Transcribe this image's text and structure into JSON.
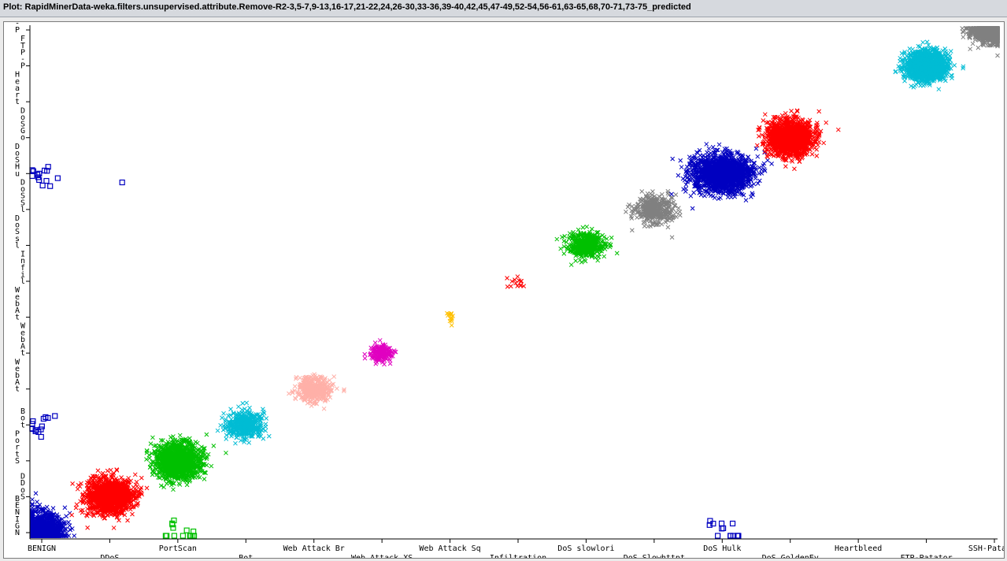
{
  "window": {
    "title": "Plot: RapidMinerData-weka.filters.unsupervised.attribute.Remove-R2-3,5-7,9-13,16-17,21-22,24,26-30,33-36,39-40,42,45,47-49,52-54,56-61,63-65,68,70-71,73-75_predicted"
  },
  "chart_data": {
    "type": "scatter",
    "title": "Plot: RapidMinerData-weka.filters.unsupervised.attribute.Remove-R2-3,5-7,9-13,16-17,21-22,24,26-30,33-36,39-40,42,45,47-49,52-54,56-61,63-65,68,70-71,73-75_predicted",
    "x_categories": [
      "BENIGN",
      "DDoS",
      "PortScan",
      "Bot",
      "Web Attack Br",
      "Web Attack XS",
      "Web Attack Sq",
      "Infiltration",
      "DoS slowlori",
      "DoS Slowhttpt",
      "DoS Hulk",
      "DoS GoldenEy",
      "Heartbleed",
      "FTP-Patator",
      "SSH-Patator"
    ],
    "y_categories": [
      "BENIGN",
      "DDoS",
      "PortScan",
      "Bot",
      "Web Attack Br",
      "Web Attack XS",
      "Web Attack Sq",
      "Infiltration",
      "DoS slowlori",
      "DoS Slowhttpt",
      "DoS Hulk",
      "DoS GoldenEy",
      "Heartbleed",
      "FTP-Patator",
      "SSH-Patator"
    ],
    "y_tick_labels": [
      {
        "lines": [
          "B",
          "E",
          "N",
          "I",
          "G",
          "N"
        ]
      },
      {
        "lines": [
          "D",
          "D",
          "o",
          "S"
        ]
      },
      {
        "lines": [
          "P",
          "o",
          "r",
          "t",
          "S"
        ]
      },
      {
        "lines": [
          "B",
          "o",
          "t"
        ]
      },
      {
        "lines": [
          "W",
          "e",
          "b",
          "A",
          "t"
        ]
      },
      {
        "lines": [
          "W",
          "e",
          "b",
          "A",
          "t"
        ]
      },
      {
        "lines": [
          "W",
          "e",
          "b",
          "A",
          "t"
        ]
      },
      {
        "lines": [
          "I",
          "n",
          "f",
          "i",
          "l"
        ]
      },
      {
        "lines": [
          "D",
          "o",
          "S",
          "s",
          "l"
        ]
      },
      {
        "lines": [
          "D",
          "o",
          "S",
          "S",
          "l"
        ]
      },
      {
        "lines": [
          "D",
          "o",
          "S",
          "H",
          "u"
        ]
      },
      {
        "lines": [
          "D",
          "o",
          "S",
          "G",
          "o"
        ]
      },
      {
        "lines": [
          "H",
          "e",
          "a",
          "r",
          "t"
        ]
      },
      {
        "lines": [
          "F",
          "T",
          "P",
          "-",
          "P"
        ]
      },
      {
        "lines": [
          "S",
          "S",
          "H",
          "-",
          "P"
        ]
      }
    ],
    "marker_correct": "x",
    "marker_misclassified": "square",
    "series": [
      {
        "x": "BENIGN",
        "y": "BENIGN",
        "color": "#0000c0",
        "marker": "x",
        "spread": [
          0.55,
          0.9
        ],
        "density": "very high"
      },
      {
        "x": "DDoS",
        "y": "DDoS",
        "color": "#ff0000",
        "marker": "x",
        "spread": [
          0.6,
          0.8
        ],
        "density": "very high"
      },
      {
        "x": "PortScan",
        "y": "PortScan",
        "color": "#00c000",
        "marker": "x",
        "spread": [
          0.6,
          0.8
        ],
        "density": "very high"
      },
      {
        "x": "Bot",
        "y": "Bot",
        "color": "#00bcd4",
        "marker": "x",
        "spread": [
          0.5,
          0.6
        ],
        "density": "high"
      },
      {
        "x": "Web Attack Br",
        "y": "Web Attack Br",
        "color": "#ffb0a8",
        "marker": "x",
        "spread": [
          0.45,
          0.55
        ],
        "density": "high"
      },
      {
        "x": "Web Attack XS",
        "y": "Web Attack XS",
        "color": "#e000c0",
        "marker": "x",
        "spread": [
          0.3,
          0.4
        ],
        "density": "medium"
      },
      {
        "x": "Web Attack Sq",
        "y": "Web Attack Sq",
        "color": "#ffc000",
        "marker": "x",
        "spread": [
          0.1,
          0.3
        ],
        "density": "sparse"
      },
      {
        "x": "Infiltration",
        "y": "Infiltration",
        "color": "#ff0000",
        "marker": "x",
        "spread": [
          0.3,
          0.3
        ],
        "density": "sparse"
      },
      {
        "x": "DoS slowlori",
        "y": "DoS slowlori",
        "color": "#00c000",
        "marker": "x",
        "spread": [
          0.5,
          0.6
        ],
        "density": "high"
      },
      {
        "x": "DoS Slowhttpt",
        "y": "DoS Slowhttpt",
        "color": "#808080",
        "marker": "x",
        "spread": [
          0.5,
          0.6
        ],
        "density": "high"
      },
      {
        "x": "DoS Hulk",
        "y": "DoS Hulk",
        "color": "#0000c0",
        "marker": "x",
        "spread": [
          0.8,
          0.9
        ],
        "density": "very high"
      },
      {
        "x": "DoS GoldenEy",
        "y": "DoS GoldenEy",
        "color": "#ff0000",
        "marker": "x",
        "spread": [
          0.6,
          0.8
        ],
        "density": "very high"
      },
      {
        "x": "FTP-Patator",
        "y": "FTP-Patator",
        "color": "#00bcd4",
        "marker": "x",
        "spread": [
          0.55,
          0.65
        ],
        "density": "very high"
      },
      {
        "x": "SSH-Patator",
        "y": "SSH-Patator",
        "color": "#808080",
        "marker": "x",
        "spread": [
          0.55,
          0.55
        ],
        "density": "very high"
      },
      {
        "x": "BENIGN",
        "y": "DoS Hulk",
        "color": "#0000c0",
        "marker": "square",
        "density": "sparse"
      },
      {
        "x": "BENIGN",
        "y": "Bot",
        "color": "#0000c0",
        "marker": "square",
        "density": "sparse"
      },
      {
        "x": "DDoS",
        "y": "DoS Hulk",
        "color": "#0000c0",
        "marker": "square",
        "density": "single"
      },
      {
        "x": "PortScan",
        "y": "BENIGN",
        "color": "#00c000",
        "marker": "square",
        "density": "sparse"
      },
      {
        "x": "DoS Hulk",
        "y": "BENIGN",
        "color": "#0000c0",
        "marker": "square",
        "density": "sparse"
      }
    ],
    "grid": false,
    "legend": "none"
  }
}
